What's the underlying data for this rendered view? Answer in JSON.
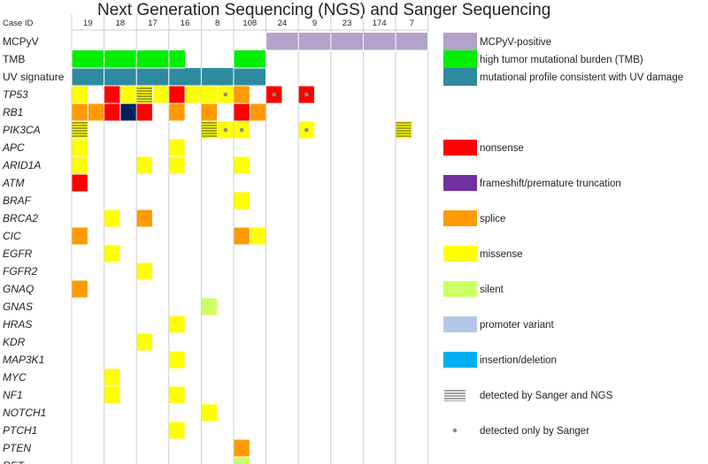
{
  "title": "Next Generation Sequencing (NGS) and Sanger Sequencing",
  "colors": {
    "mcpyv": "#b3a2c9",
    "tmb": "#00ee00",
    "uv": "#2e8b9f",
    "nonsense": "#ff0000",
    "frameshift": "#7030a0",
    "splice": "#ff9a00",
    "missense": "#ffff00",
    "silent": "#ccff66",
    "promoter": "#b4c7e7",
    "indel": "#00b0f0",
    "navy": "#002060"
  },
  "chart_data": {
    "type": "heatmap",
    "column_header": "Case ID",
    "cases": [
      "19",
      "",
      "18",
      "",
      "17",
      "",
      "16",
      "",
      "8",
      "",
      "108",
      "",
      "24",
      "",
      "9",
      "",
      "23",
      "",
      "174",
      "",
      "7",
      ""
    ],
    "cases_header_positions": "each named case spans two sub-columns",
    "rows": [
      "MCPyV",
      "TMB",
      "UV signature",
      "TP53",
      "RB1",
      "PIK3CA",
      "APC",
      "ARID1A",
      "ATM",
      "BRAF",
      "BRCA2",
      "CIC",
      "EGFR",
      "FGFR2",
      "GNAQ",
      "GNAS",
      "HRAS",
      "KDR",
      "MAP3K1",
      "MYC",
      "NF1",
      "NOTCH1",
      "PTCH1",
      "PTEN",
      "RET"
    ],
    "italic_rows_from": "TP53",
    "bands": [
      {
        "row": "MCPyV",
        "type": "mcpyv",
        "col_from": 12,
        "col_to": 21
      },
      {
        "row": "TMB",
        "type": "tmb",
        "col_from": 0,
        "col_to": 6
      },
      {
        "row": "TMB",
        "type": "tmb",
        "col_from": 10,
        "col_to": 11
      },
      {
        "row": "UV signature",
        "type": "uv",
        "col_from": 0,
        "col_to": 11
      }
    ],
    "cells": [
      {
        "row": "TP53",
        "col": 0,
        "type": "missense"
      },
      {
        "row": "TP53",
        "col": 2,
        "type": "nonsense"
      },
      {
        "row": "TP53",
        "col": 3,
        "type": "missense"
      },
      {
        "row": "TP53",
        "col": 4,
        "type": "missense",
        "sanger_ngs": true
      },
      {
        "row": "TP53",
        "col": 5,
        "type": "missense"
      },
      {
        "row": "TP53",
        "col": 6,
        "type": "nonsense"
      },
      {
        "row": "TP53",
        "col": 7,
        "type": "missense"
      },
      {
        "row": "TP53",
        "col": 8,
        "type": "missense"
      },
      {
        "row": "TP53",
        "col": 9,
        "type": "missense",
        "sanger_only": true
      },
      {
        "row": "TP53",
        "col": 10,
        "type": "splice"
      },
      {
        "row": "TP53",
        "col": 12,
        "type": "nonsense",
        "sanger_only": true
      },
      {
        "row": "TP53",
        "col": 14,
        "type": "nonsense",
        "sanger_only": true
      },
      {
        "row": "RB1",
        "col": 0,
        "type": "splice"
      },
      {
        "row": "RB1",
        "col": 1,
        "type": "splice"
      },
      {
        "row": "RB1",
        "col": 2,
        "type": "nonsense"
      },
      {
        "row": "RB1",
        "col": 3,
        "type": "navy"
      },
      {
        "row": "RB1",
        "col": 4,
        "type": "nonsense"
      },
      {
        "row": "RB1",
        "col": 6,
        "type": "splice"
      },
      {
        "row": "RB1",
        "col": 8,
        "type": "splice"
      },
      {
        "row": "RB1",
        "col": 10,
        "type": "nonsense"
      },
      {
        "row": "RB1",
        "col": 11,
        "type": "splice"
      },
      {
        "row": "PIK3CA",
        "col": 0,
        "type": "missense",
        "sanger_ngs": true
      },
      {
        "row": "PIK3CA",
        "col": 8,
        "type": "missense",
        "sanger_ngs": true
      },
      {
        "row": "PIK3CA",
        "col": 9,
        "type": "missense",
        "sanger_only": true
      },
      {
        "row": "PIK3CA",
        "col": 10,
        "type": "missense",
        "sanger_only": true
      },
      {
        "row": "PIK3CA",
        "col": 14,
        "type": "missense",
        "sanger_only": true
      },
      {
        "row": "PIK3CA",
        "col": 20,
        "type": "missense",
        "sanger_ngs": true
      },
      {
        "row": "APC",
        "col": 0,
        "type": "missense"
      },
      {
        "row": "APC",
        "col": 6,
        "type": "missense"
      },
      {
        "row": "ARID1A",
        "col": 0,
        "type": "missense"
      },
      {
        "row": "ARID1A",
        "col": 4,
        "type": "missense"
      },
      {
        "row": "ARID1A",
        "col": 6,
        "type": "missense"
      },
      {
        "row": "ARID1A",
        "col": 10,
        "type": "missense"
      },
      {
        "row": "ATM",
        "col": 0,
        "type": "nonsense"
      },
      {
        "row": "BRAF",
        "col": 10,
        "type": "missense"
      },
      {
        "row": "BRCA2",
        "col": 2,
        "type": "missense"
      },
      {
        "row": "BRCA2",
        "col": 4,
        "type": "splice"
      },
      {
        "row": "CIC",
        "col": 0,
        "type": "splice"
      },
      {
        "row": "CIC",
        "col": 10,
        "type": "splice"
      },
      {
        "row": "CIC",
        "col": 11,
        "type": "missense"
      },
      {
        "row": "EGFR",
        "col": 2,
        "type": "missense"
      },
      {
        "row": "FGFR2",
        "col": 4,
        "type": "missense"
      },
      {
        "row": "GNAQ",
        "col": 0,
        "type": "splice"
      },
      {
        "row": "GNAS",
        "col": 8,
        "type": "silent"
      },
      {
        "row": "HRAS",
        "col": 6,
        "type": "missense"
      },
      {
        "row": "KDR",
        "col": 4,
        "type": "missense"
      },
      {
        "row": "MAP3K1",
        "col": 6,
        "type": "missense"
      },
      {
        "row": "MYC",
        "col": 2,
        "type": "missense"
      },
      {
        "row": "NF1",
        "col": 2,
        "type": "missense"
      },
      {
        "row": "NF1",
        "col": 6,
        "type": "missense"
      },
      {
        "row": "NOTCH1",
        "col": 8,
        "type": "missense"
      },
      {
        "row": "PTCH1",
        "col": 6,
        "type": "missense"
      },
      {
        "row": "PTEN",
        "col": 10,
        "type": "splice"
      },
      {
        "row": "RET",
        "col": 10,
        "type": "silent"
      }
    ],
    "legend": [
      {
        "label": "MCPyV-positive",
        "type": "mcpyv",
        "row": 0
      },
      {
        "label": "high tumor mutational burden (TMB)",
        "type": "tmb",
        "row": 1
      },
      {
        "label": "mutational profile consistent with UV damage",
        "type": "uv",
        "row": 2
      },
      {
        "label": "nonsense",
        "type": "nonsense",
        "row": 6
      },
      {
        "label": "frameshift/premature truncation",
        "type": "frameshift",
        "row": 8
      },
      {
        "label": "splice",
        "type": "splice",
        "row": 10
      },
      {
        "label": "missense",
        "type": "missense",
        "row": 12
      },
      {
        "label": "silent",
        "type": "silent",
        "row": 14
      },
      {
        "label": "promoter variant",
        "type": "promoter",
        "row": 16
      },
      {
        "label": "insertion/deletion",
        "type": "indel",
        "row": 18
      },
      {
        "label": "detected by Sanger and NGS",
        "type": "hatch",
        "row": 20
      },
      {
        "label": "detected only by Sanger",
        "type": "dot",
        "row": 22
      }
    ]
  }
}
